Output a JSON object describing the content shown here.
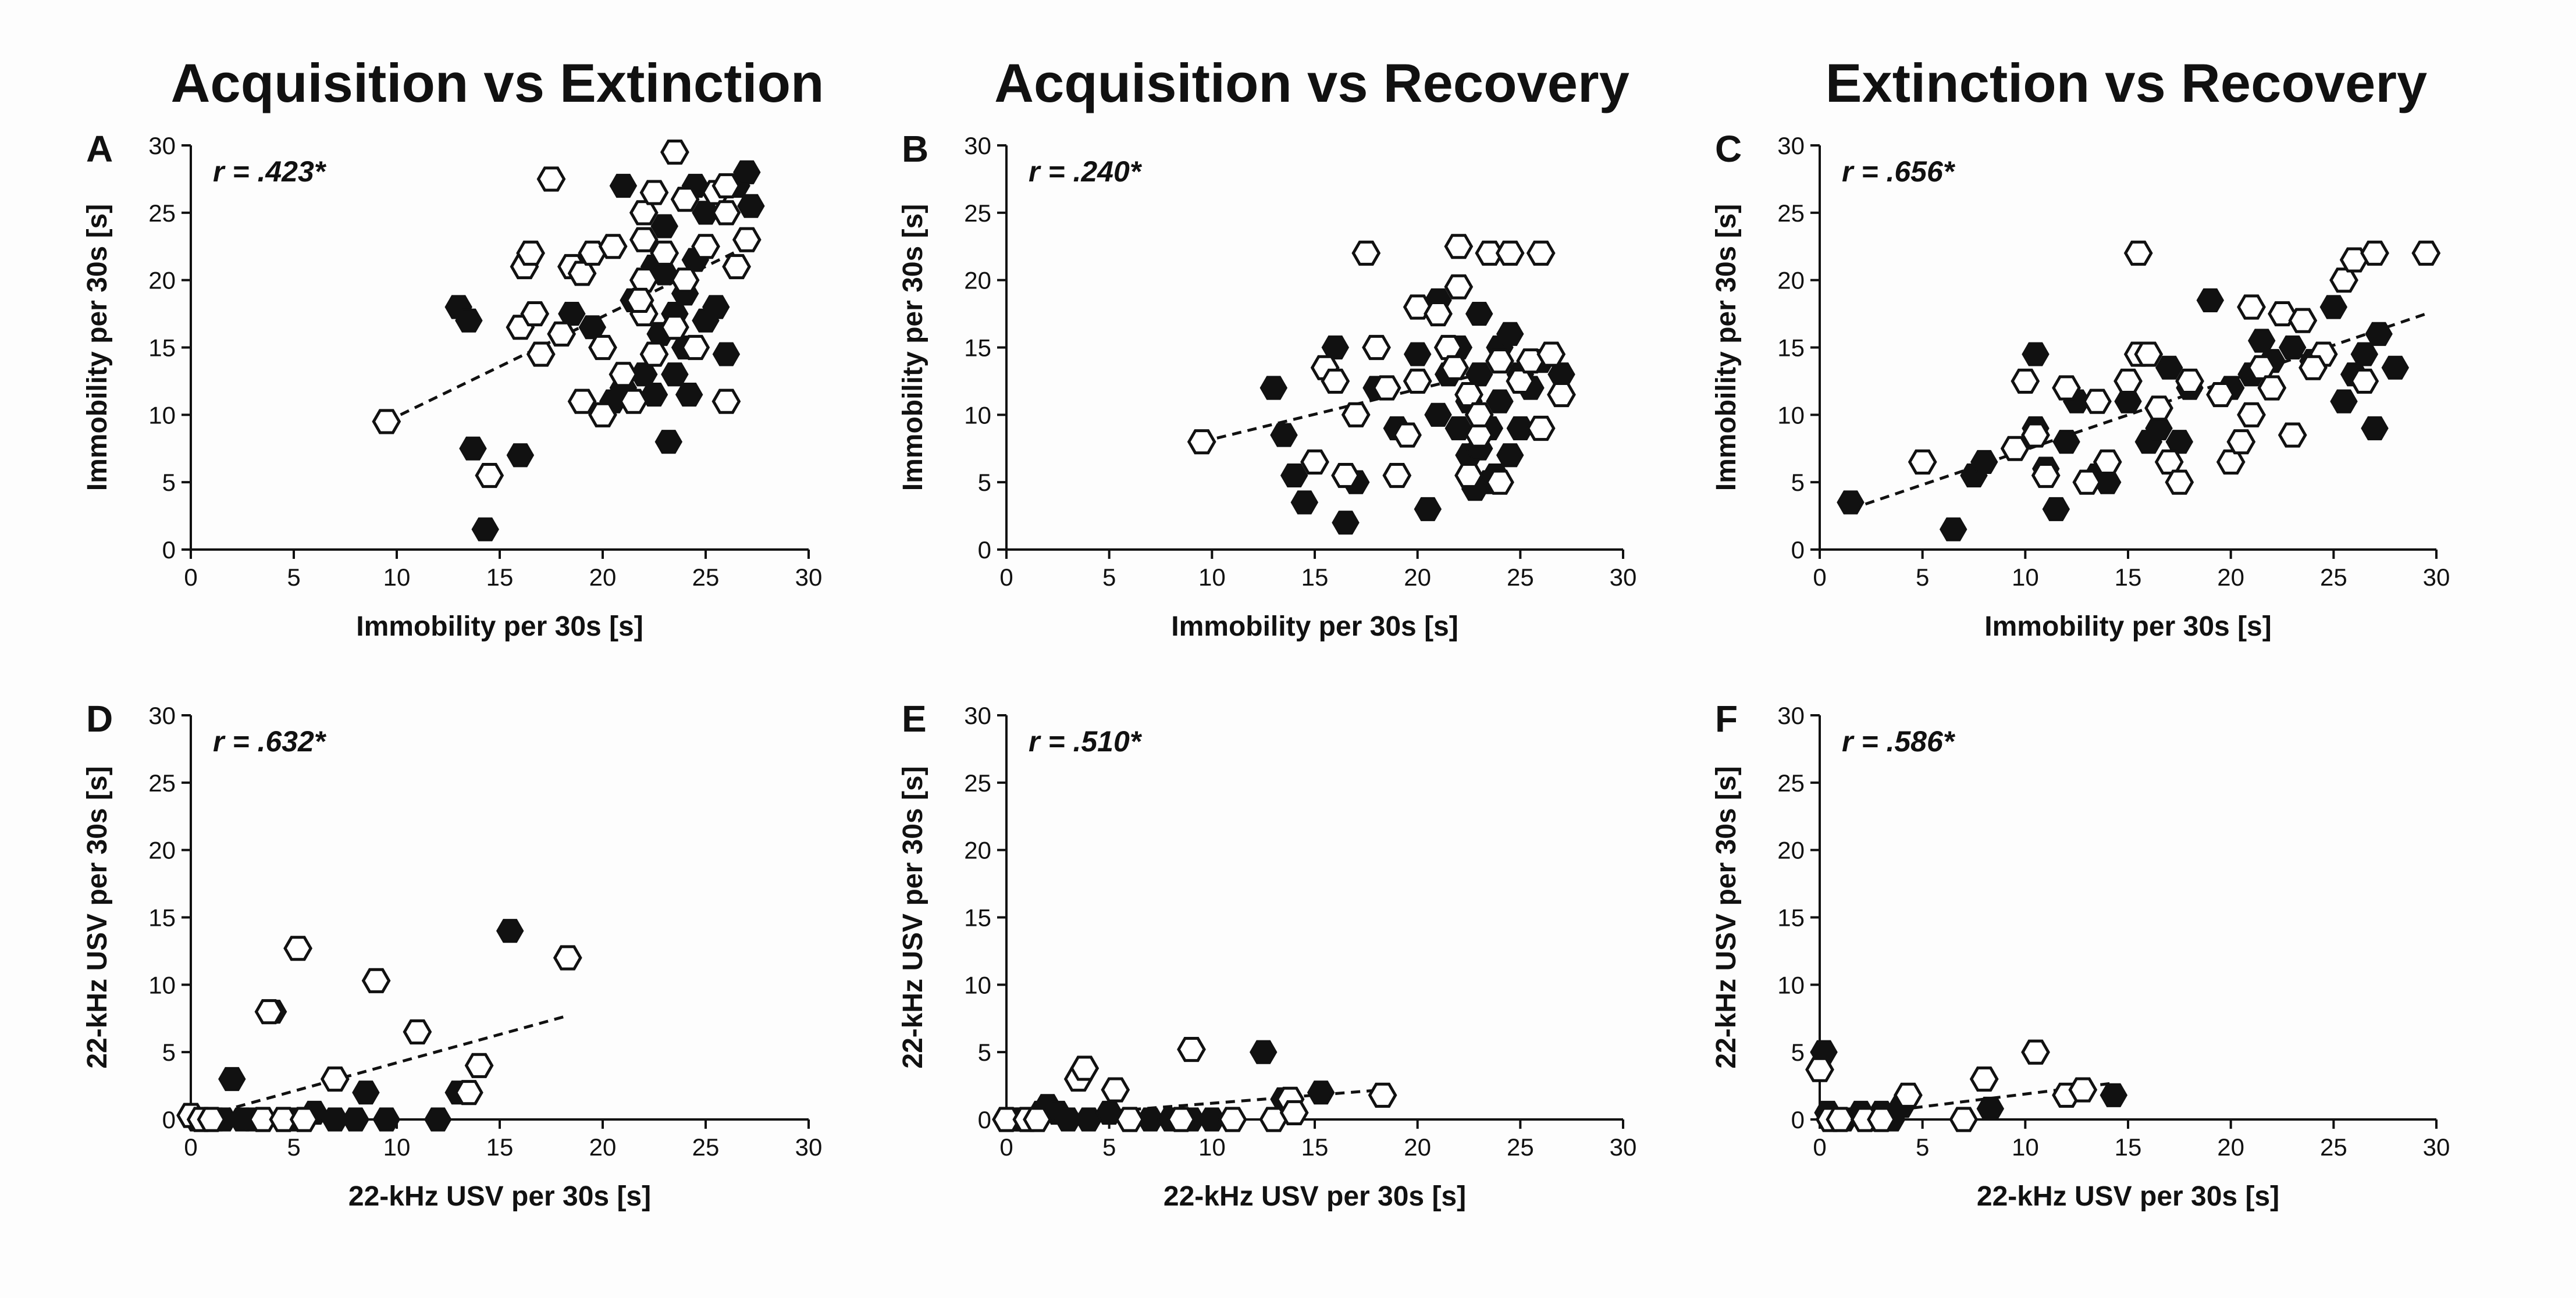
{
  "column_titles": [
    "Acquisition vs Extinction",
    "Acquisition vs Recovery",
    "Extinction vs Recovery"
  ],
  "chart_data": [
    {
      "panel": "A",
      "type": "scatter",
      "r_label": "r = .423*",
      "xlabel": "Immobility per 30s [s]",
      "ylabel": "Immobility per 30s [s]",
      "xlim": [
        0,
        30
      ],
      "ylim": [
        0,
        30
      ],
      "xticks": [
        0,
        5,
        10,
        15,
        20,
        25,
        30
      ],
      "yticks": [
        0,
        5,
        10,
        15,
        20,
        25,
        30
      ],
      "fit": [
        [
          9.5,
          9.5
        ],
        [
          27,
          22.5
        ]
      ],
      "points_filled": [
        [
          13,
          18
        ],
        [
          13.5,
          17
        ],
        [
          13.7,
          7.5
        ],
        [
          14.3,
          1.5
        ],
        [
          16,
          7
        ],
        [
          18.5,
          17.5
        ],
        [
          19.5,
          16.5
        ],
        [
          20.5,
          11
        ],
        [
          21,
          27
        ],
        [
          21,
          12
        ],
        [
          21.5,
          18.5
        ],
        [
          22,
          13
        ],
        [
          22.5,
          11.5
        ],
        [
          22.5,
          21
        ],
        [
          23,
          24
        ],
        [
          23,
          20.5
        ],
        [
          23.2,
          8
        ],
        [
          23.5,
          17.5
        ],
        [
          23.5,
          13
        ],
        [
          24,
          19
        ],
        [
          24,
          15
        ],
        [
          24.5,
          27
        ],
        [
          24.5,
          21.5
        ],
        [
          25,
          25
        ],
        [
          25,
          17
        ],
        [
          25.5,
          18
        ],
        [
          26,
          14.5
        ],
        [
          26.5,
          27
        ],
        [
          27,
          28
        ],
        [
          27.2,
          25.5
        ],
        [
          24.2,
          11.5
        ],
        [
          22.8,
          16
        ]
      ],
      "points_open": [
        [
          9.5,
          9.5
        ],
        [
          14.5,
          5.5
        ],
        [
          16,
          16.5
        ],
        [
          16.2,
          21
        ],
        [
          16.5,
          22
        ],
        [
          16.7,
          17.5
        ],
        [
          17,
          14.5
        ],
        [
          17.5,
          27.5
        ],
        [
          18,
          16
        ],
        [
          18.5,
          21
        ],
        [
          19,
          20.5
        ],
        [
          19,
          11
        ],
        [
          19.5,
          22
        ],
        [
          20,
          15
        ],
        [
          20,
          10
        ],
        [
          20.5,
          22.5
        ],
        [
          21,
          13
        ],
        [
          21.5,
          11
        ],
        [
          22,
          25
        ],
        [
          22,
          23
        ],
        [
          22,
          20
        ],
        [
          22,
          17.5
        ],
        [
          22.5,
          26.5
        ],
        [
          22.5,
          14.5
        ],
        [
          23,
          22
        ],
        [
          23.5,
          29.5
        ],
        [
          24,
          26
        ],
        [
          24,
          20
        ],
        [
          24.5,
          15
        ],
        [
          25,
          22.5
        ],
        [
          25.5,
          26.5
        ],
        [
          26,
          25
        ],
        [
          26,
          27
        ],
        [
          26,
          11
        ],
        [
          26.5,
          21
        ],
        [
          27,
          23
        ],
        [
          23.5,
          16.5
        ],
        [
          21.8,
          18.5
        ]
      ]
    },
    {
      "panel": "B",
      "type": "scatter",
      "r_label": "r = .240*",
      "xlabel": "Immobility per 30s [s]",
      "ylabel": "Immobility per 30s [s]",
      "xlim": [
        0,
        30
      ],
      "ylim": [
        0,
        30
      ],
      "xticks": [
        0,
        5,
        10,
        15,
        20,
        25,
        30
      ],
      "yticks": [
        0,
        5,
        10,
        15,
        20,
        25,
        30
      ],
      "fit": [
        [
          9.5,
          8
        ],
        [
          27,
          14.5
        ]
      ],
      "points_filled": [
        [
          13,
          12
        ],
        [
          13.5,
          8.5
        ],
        [
          14,
          5.5
        ],
        [
          14.5,
          3.5
        ],
        [
          16,
          15
        ],
        [
          16.5,
          2
        ],
        [
          17,
          5
        ],
        [
          18,
          12
        ],
        [
          19,
          9
        ],
        [
          20,
          14.5
        ],
        [
          20.5,
          3
        ],
        [
          21,
          10
        ],
        [
          21,
          18.5
        ],
        [
          21.5,
          13
        ],
        [
          22,
          15
        ],
        [
          22,
          9
        ],
        [
          22.5,
          7
        ],
        [
          22.5,
          11
        ],
        [
          23,
          17.5
        ],
        [
          23,
          13
        ],
        [
          23,
          7.5
        ],
        [
          23.5,
          5
        ],
        [
          23.5,
          9
        ],
        [
          24,
          11
        ],
        [
          24,
          15
        ],
        [
          24.5,
          16
        ],
        [
          24.5,
          7
        ],
        [
          25,
          13
        ],
        [
          25,
          9
        ],
        [
          25.5,
          12
        ],
        [
          26,
          14
        ],
        [
          27,
          13
        ],
        [
          22.8,
          4.5
        ],
        [
          23.8,
          5.5
        ]
      ],
      "points_open": [
        [
          9.5,
          8
        ],
        [
          15,
          6.5
        ],
        [
          15.5,
          13.5
        ],
        [
          16,
          12.5
        ],
        [
          16.5,
          5.5
        ],
        [
          17,
          10
        ],
        [
          17.5,
          22
        ],
        [
          18,
          15
        ],
        [
          18.5,
          12
        ],
        [
          19,
          5.5
        ],
        [
          19.5,
          8.5
        ],
        [
          20,
          12.5
        ],
        [
          20,
          18
        ],
        [
          21,
          17.5
        ],
        [
          21.5,
          15
        ],
        [
          22,
          19.5
        ],
        [
          22,
          22.5
        ],
        [
          22.5,
          11.5
        ],
        [
          22.5,
          5.5
        ],
        [
          23,
          8.5
        ],
        [
          23,
          10
        ],
        [
          23.5,
          22
        ],
        [
          24,
          14
        ],
        [
          24,
          5
        ],
        [
          24.5,
          22
        ],
        [
          25,
          12.5
        ],
        [
          25.5,
          14
        ],
        [
          26,
          22
        ],
        [
          26,
          9
        ],
        [
          26.5,
          14.5
        ],
        [
          27,
          11.5
        ],
        [
          21.8,
          13.5
        ]
      ]
    },
    {
      "panel": "C",
      "type": "scatter",
      "r_label": "r = .656*",
      "xlabel": "Immobility per 30s [s]",
      "ylabel": "Immobility per 30s [s]",
      "xlim": [
        0,
        30
      ],
      "ylim": [
        0,
        30
      ],
      "xticks": [
        0,
        5,
        10,
        15,
        20,
        25,
        30
      ],
      "yticks": [
        0,
        5,
        10,
        15,
        20,
        25,
        30
      ],
      "fit": [
        [
          1.5,
          3
        ],
        [
          29.5,
          17.5
        ]
      ],
      "points_filled": [
        [
          1.5,
          3.5
        ],
        [
          6.5,
          1.5
        ],
        [
          7.5,
          5.5
        ],
        [
          8,
          6.5
        ],
        [
          10.5,
          14.5
        ],
        [
          10.5,
          9
        ],
        [
          11,
          6
        ],
        [
          11.5,
          3
        ],
        [
          12,
          8
        ],
        [
          12.5,
          11
        ],
        [
          13.5,
          5.5
        ],
        [
          14,
          5
        ],
        [
          15,
          11
        ],
        [
          16,
          8
        ],
        [
          16.5,
          9
        ],
        [
          17,
          13.5
        ],
        [
          17.5,
          8
        ],
        [
          18,
          12
        ],
        [
          19,
          18.5
        ],
        [
          20,
          12
        ],
        [
          21,
          13
        ],
        [
          21.5,
          15.5
        ],
        [
          22,
          14
        ],
        [
          23,
          15
        ],
        [
          24,
          14
        ],
        [
          25,
          18
        ],
        [
          25.5,
          11
        ],
        [
          26,
          13
        ],
        [
          26.5,
          14.5
        ],
        [
          27,
          9
        ],
        [
          27.2,
          16
        ],
        [
          28,
          13.5
        ]
      ],
      "points_open": [
        [
          5,
          6.5
        ],
        [
          9.5,
          7.5
        ],
        [
          10,
          12.5
        ],
        [
          10.5,
          8.5
        ],
        [
          11,
          5.5
        ],
        [
          12,
          12
        ],
        [
          13,
          5
        ],
        [
          13.5,
          11
        ],
        [
          14,
          6.5
        ],
        [
          15,
          12.5
        ],
        [
          15.5,
          14.5
        ],
        [
          15.5,
          22
        ],
        [
          16,
          14.5
        ],
        [
          16.5,
          10.5
        ],
        [
          17,
          6.5
        ],
        [
          17.5,
          5
        ],
        [
          18,
          12.5
        ],
        [
          19.5,
          11.5
        ],
        [
          20,
          6.5
        ],
        [
          20.5,
          8
        ],
        [
          21,
          10
        ],
        [
          21,
          18
        ],
        [
          21.5,
          13.5
        ],
        [
          22,
          12
        ],
        [
          22.5,
          17.5
        ],
        [
          23,
          8.5
        ],
        [
          23.5,
          17
        ],
        [
          24.5,
          14.5
        ],
        [
          25.5,
          20
        ],
        [
          26,
          21.5
        ],
        [
          26.5,
          12.5
        ],
        [
          27,
          22
        ],
        [
          29.5,
          22
        ],
        [
          24,
          13.5
        ]
      ]
    },
    {
      "panel": "D",
      "type": "scatter",
      "r_label": "r = .632*",
      "xlabel": "22-kHz USV per 30s [s]",
      "ylabel": "22-kHz USV per 30s [s]",
      "xlim": [
        0,
        30
      ],
      "ylim": [
        0,
        30
      ],
      "xticks": [
        0,
        5,
        10,
        15,
        20,
        25,
        30
      ],
      "yticks": [
        0,
        5,
        10,
        15,
        20,
        25,
        30
      ],
      "fit": [
        [
          0,
          0
        ],
        [
          18.3,
          7.7
        ]
      ],
      "points_filled": [
        [
          0.3,
          0
        ],
        [
          0.8,
          0
        ],
        [
          1.2,
          0
        ],
        [
          1.6,
          0
        ],
        [
          2,
          3
        ],
        [
          2.5,
          0
        ],
        [
          3,
          0
        ],
        [
          4,
          8
        ],
        [
          5,
          0
        ],
        [
          5.5,
          0
        ],
        [
          6,
          0.5
        ],
        [
          7,
          0
        ],
        [
          8,
          0
        ],
        [
          8.5,
          2
        ],
        [
          9.5,
          0
        ],
        [
          12,
          0
        ],
        [
          13,
          2
        ],
        [
          15.5,
          14
        ],
        [
          0.5,
          0
        ]
      ],
      "points_open": [
        [
          0,
          0.3
        ],
        [
          0.5,
          0
        ],
        [
          1,
          0
        ],
        [
          3.5,
          0
        ],
        [
          3.8,
          8
        ],
        [
          4.5,
          0
        ],
        [
          5.2,
          12.7
        ],
        [
          5.5,
          0
        ],
        [
          7,
          3
        ],
        [
          9,
          10.3
        ],
        [
          11,
          6.5
        ],
        [
          13.5,
          2
        ],
        [
          14,
          4
        ],
        [
          18.3,
          12
        ]
      ]
    },
    {
      "panel": "E",
      "type": "scatter",
      "r_label": "r = .510*",
      "xlabel": "22-kHz USV per 30s [s]",
      "ylabel": "22-kHz USV per 30s [s]",
      "xlim": [
        0,
        30
      ],
      "ylim": [
        0,
        30
      ],
      "xticks": [
        0,
        5,
        10,
        15,
        20,
        25,
        30
      ],
      "yticks": [
        0,
        5,
        10,
        15,
        20,
        25,
        30
      ],
      "fit": [
        [
          0,
          0
        ],
        [
          18.3,
          2.2
        ]
      ],
      "points_filled": [
        [
          0.3,
          0
        ],
        [
          0.8,
          0
        ],
        [
          1.2,
          0
        ],
        [
          1.7,
          0.5
        ],
        [
          2,
          1
        ],
        [
          2.5,
          0.5
        ],
        [
          3,
          0
        ],
        [
          4,
          0
        ],
        [
          5,
          0.5
        ],
        [
          6,
          0
        ],
        [
          7,
          0
        ],
        [
          8,
          0
        ],
        [
          9,
          0
        ],
        [
          10,
          0
        ],
        [
          12.5,
          5
        ],
        [
          13.5,
          1.5
        ],
        [
          15.3,
          2
        ],
        [
          0.5,
          0
        ]
      ],
      "points_open": [
        [
          0,
          0
        ],
        [
          1,
          0
        ],
        [
          1.5,
          0
        ],
        [
          3.5,
          3
        ],
        [
          3.8,
          3.8
        ],
        [
          5.3,
          2.2
        ],
        [
          6,
          0
        ],
        [
          8.5,
          0
        ],
        [
          9,
          5.2
        ],
        [
          11,
          0
        ],
        [
          13,
          0
        ],
        [
          13.8,
          1.5
        ],
        [
          14,
          0.5
        ],
        [
          18.3,
          1.8
        ]
      ]
    },
    {
      "panel": "F",
      "type": "scatter",
      "r_label": "r = .586*",
      "xlabel": "22-kHz USV per 30s [s]",
      "ylabel": "22-kHz USV per 30s [s]",
      "xlim": [
        0,
        30
      ],
      "ylim": [
        0,
        30
      ],
      "xticks": [
        0,
        5,
        10,
        15,
        20,
        25,
        30
      ],
      "yticks": [
        0,
        5,
        10,
        15,
        20,
        25,
        30
      ],
      "fit": [
        [
          0,
          0
        ],
        [
          14.3,
          2.7
        ]
      ],
      "points_filled": [
        [
          0.2,
          5
        ],
        [
          0.4,
          0.5
        ],
        [
          0.8,
          0
        ],
        [
          1.2,
          0
        ],
        [
          2,
          0.5
        ],
        [
          2.5,
          0
        ],
        [
          3,
          0.5
        ],
        [
          3.5,
          0
        ],
        [
          4,
          1
        ],
        [
          8.3,
          0.8
        ],
        [
          14.3,
          1.8
        ]
      ],
      "points_open": [
        [
          0,
          3.7
        ],
        [
          0.5,
          0
        ],
        [
          1,
          0
        ],
        [
          2.2,
          0
        ],
        [
          3,
          0
        ],
        [
          4.3,
          1.8
        ],
        [
          7,
          0
        ],
        [
          8,
          3
        ],
        [
          10.5,
          5
        ],
        [
          12,
          1.8
        ],
        [
          12.8,
          2.2
        ]
      ]
    }
  ]
}
